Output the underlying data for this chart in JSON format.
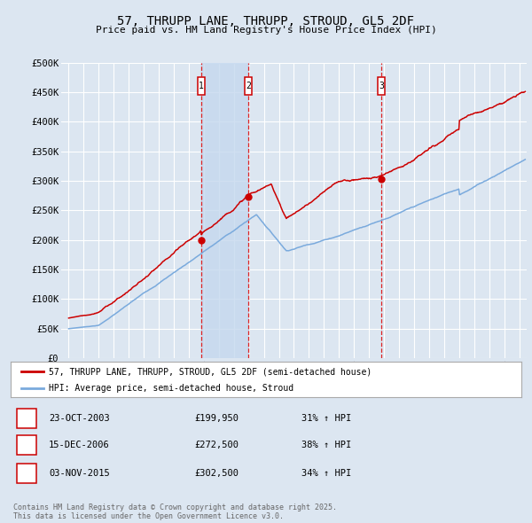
{
  "title": "57, THRUPP LANE, THRUPP, STROUD, GL5 2DF",
  "subtitle": "Price paid vs. HM Land Registry's House Price Index (HPI)",
  "background_color": "#dce6f1",
  "plot_bg_color": "#dce6f1",
  "grid_color": "#ffffff",
  "line1_color": "#cc0000",
  "line2_color": "#7aaadd",
  "sale_line_color": "#dd2222",
  "shade_color": "#c5d8ee",
  "ylim": [
    0,
    500000
  ],
  "yticks": [
    0,
    50000,
    100000,
    150000,
    200000,
    250000,
    300000,
    350000,
    400000,
    450000,
    500000
  ],
  "ytick_labels": [
    "£0",
    "£50K",
    "£100K",
    "£150K",
    "£200K",
    "£250K",
    "£300K",
    "£350K",
    "£400K",
    "£450K",
    "£500K"
  ],
  "sale_dates": [
    2003.81,
    2006.96,
    2015.84
  ],
  "sale_prices": [
    199950,
    272500,
    302500
  ],
  "sale_labels": [
    "1",
    "2",
    "3"
  ],
  "sale_date_strs": [
    "23-OCT-2003",
    "15-DEC-2006",
    "03-NOV-2015"
  ],
  "sale_price_strs": [
    "£199,950",
    "£272,500",
    "£302,500"
  ],
  "sale_hpi_strs": [
    "31% ↑ HPI",
    "38% ↑ HPI",
    "34% ↑ HPI"
  ],
  "legend1_label": "57, THRUPP LANE, THRUPP, STROUD, GL5 2DF (semi-detached house)",
  "legend2_label": "HPI: Average price, semi-detached house, Stroud",
  "footer": "Contains HM Land Registry data © Crown copyright and database right 2025.\nThis data is licensed under the Open Government Licence v3.0.",
  "xlim_start": 1994.5,
  "xlim_end": 2025.5
}
